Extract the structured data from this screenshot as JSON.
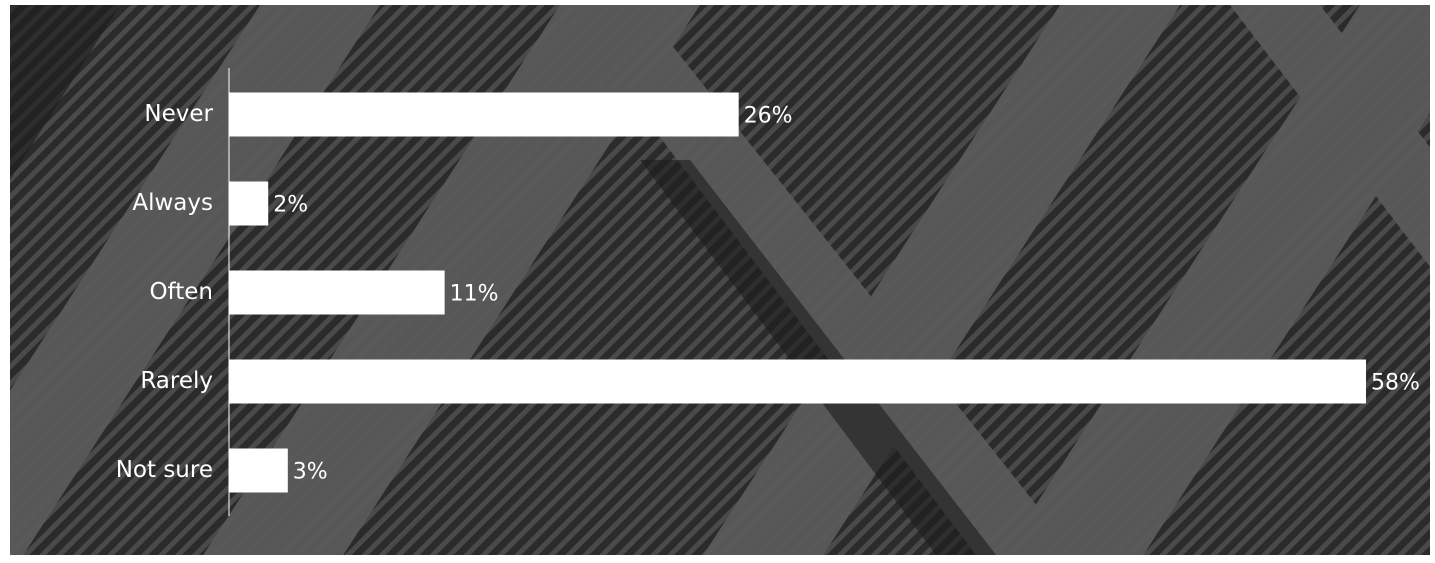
{
  "chart_data": {
    "type": "hbar",
    "categories": [
      "Never",
      "Always",
      "Often",
      "Rarely",
      "Not sure"
    ],
    "values": [
      26,
      2,
      11,
      58,
      3
    ],
    "value_labels": [
      "26%",
      "2%",
      "11%",
      "58%",
      "3%"
    ],
    "color": "#ffffff"
  }
}
